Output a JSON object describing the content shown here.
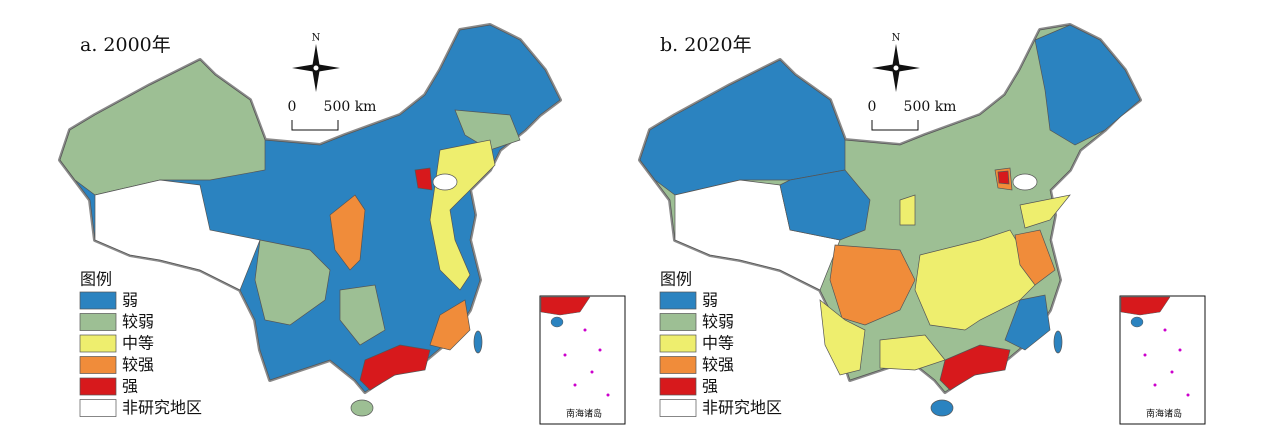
{
  "panels": [
    {
      "title": "a. 2000年"
    },
    {
      "title": "b. 2020年"
    }
  ],
  "compass": "N",
  "scale": {
    "zero": "0",
    "length": "500 km"
  },
  "legend": {
    "title": "图例",
    "items": [
      {
        "label": "弱",
        "color": "#2b83c0"
      },
      {
        "label": "较弱",
        "color": "#9dbf94"
      },
      {
        "label": "中等",
        "color": "#eeee6e"
      },
      {
        "label": "较强",
        "color": "#f08c3a"
      },
      {
        "label": "强",
        "color": "#d7191c"
      },
      {
        "label": "非研究地区",
        "color": "#ffffff"
      }
    ]
  },
  "inset_label": "南海诸岛"
}
